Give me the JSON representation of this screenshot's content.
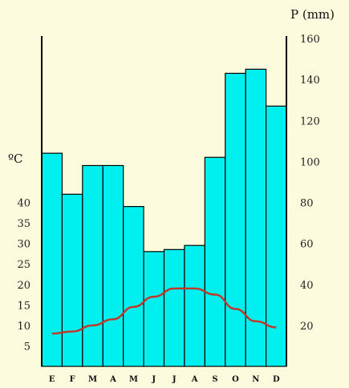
{
  "chart_data": {
    "type": "bar",
    "title": "",
    "categories": [
      "E",
      "F",
      "M",
      "A",
      "M",
      "J",
      "J",
      "A",
      "S",
      "O",
      "N",
      "D"
    ],
    "precipitation": {
      "axis_label": "P (mm)",
      "ylim": [
        0,
        160
      ],
      "ticks": [
        20,
        40,
        60,
        80,
        100,
        120,
        140,
        160
      ],
      "values": [
        104,
        84,
        98,
        98,
        78,
        56,
        57,
        59,
        102,
        143,
        145,
        127
      ],
      "bar_color": "#00f0f0"
    },
    "temperature": {
      "axis_label": "ºC",
      "ylim": [
        0,
        80
      ],
      "ticks": [
        5,
        10,
        15,
        20,
        25,
        30,
        35,
        40
      ],
      "values": [
        8,
        8.5,
        10,
        11.5,
        14.5,
        17,
        19,
        19,
        17.5,
        14,
        11,
        9.5
      ],
      "line_color": "#c0392b"
    },
    "grid": false
  }
}
